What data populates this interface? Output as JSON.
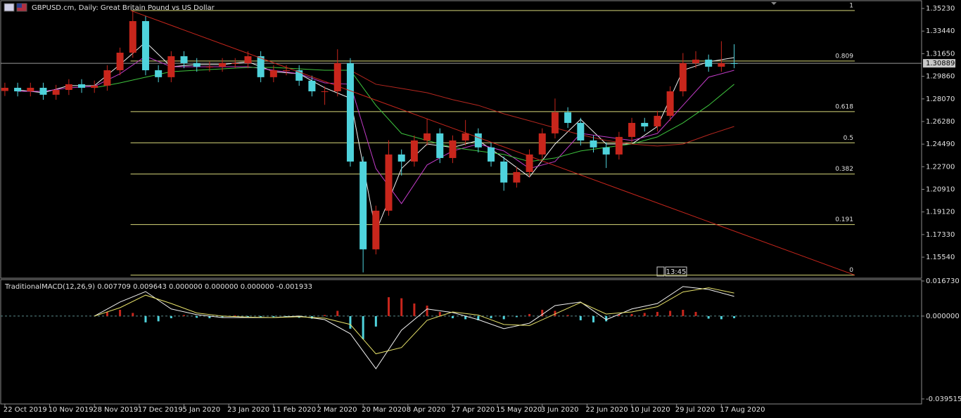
{
  "chart_data": [
    {
      "type": "candlestick",
      "title": "GBPUSD.cm, Daily:  Great Britain Pound vs US Dollar",
      "x": [
        0,
        4,
        8,
        12,
        16,
        20,
        24,
        28,
        32,
        36,
        40,
        44,
        48,
        52,
        56,
        60,
        64,
        68,
        72,
        76,
        80,
        84,
        88,
        92,
        96,
        100,
        104,
        108,
        112,
        116,
        120,
        124,
        128,
        132,
        136,
        140,
        144,
        148,
        152,
        156,
        160,
        164,
        168,
        172,
        176,
        180,
        184,
        188,
        192,
        196,
        200,
        204,
        208,
        212,
        216,
        220,
        224,
        228
      ],
      "open": [
        1.287,
        1.2895,
        1.2867,
        1.2895,
        1.284,
        1.2878,
        1.2923,
        1.2895,
        1.2912,
        1.3034,
        1.3173,
        1.3423,
        1.3034,
        1.2979,
        1.3145,
        1.309,
        1.3062,
        1.3062,
        1.309,
        1.309,
        1.3145,
        1.2979,
        1.3034,
        1.3034,
        1.2951,
        1.2867,
        1.2867,
        1.309,
        1.2311,
        1.1616,
        1.1922,
        1.2367,
        1.2311,
        1.2478,
        1.2534,
        1.2339,
        1.2478,
        1.2534,
        1.2423,
        1.2311,
        1.2145,
        1.2228,
        1.2367,
        1.2534,
        1.2701,
        1.2617,
        1.2478,
        1.2423,
        1.2367,
        1.2506,
        1.2617,
        1.2589,
        1.2673,
        1.2867,
        1.309,
        1.3118,
        1.3062,
        1.309
      ],
      "high": [
        1.2935,
        1.2935,
        1.2935,
        1.2935,
        1.2918,
        1.2963,
        1.2963,
        1.2952,
        1.3074,
        1.3213,
        1.35,
        1.3463,
        1.3074,
        1.3185,
        1.3185,
        1.313,
        1.3102,
        1.313,
        1.313,
        1.3185,
        1.3185,
        1.3074,
        1.3074,
        1.3074,
        1.2991,
        1.2907,
        1.32,
        1.313,
        1.2351,
        1.1962,
        1.248,
        1.2407,
        1.2518,
        1.265,
        1.2574,
        1.2518,
        1.264,
        1.2574,
        1.2463,
        1.2351,
        1.2268,
        1.2407,
        1.2574,
        1.281,
        1.2741,
        1.2657,
        1.2518,
        1.2463,
        1.2546,
        1.2657,
        1.2657,
        1.2713,
        1.2907,
        1.317,
        1.3185,
        1.3158,
        1.3264,
        1.324
      ],
      "low": [
        1.283,
        1.2827,
        1.2827,
        1.28,
        1.28,
        1.2838,
        1.2855,
        1.2855,
        1.2872,
        1.2994,
        1.3133,
        1.2994,
        1.2939,
        1.2939,
        1.305,
        1.3022,
        1.3022,
        1.3022,
        1.305,
        1.305,
        1.2939,
        1.2939,
        1.2994,
        1.2911,
        1.2827,
        1.276,
        1.2827,
        1.2271,
        1.1433,
        1.1576,
        1.1882,
        1.22,
        1.2271,
        1.2438,
        1.2299,
        1.2299,
        1.2438,
        1.2383,
        1.2271,
        1.208,
        1.2105,
        1.2188,
        1.2327,
        1.2494,
        1.2577,
        1.2438,
        1.2383,
        1.226,
        1.2327,
        1.2466,
        1.2549,
        1.2549,
        1.2633,
        1.2827,
        1.305,
        1.3022,
        1.3022,
        1.305
      ],
      "close": [
        1.2895,
        1.2867,
        1.2895,
        1.284,
        1.2878,
        1.2923,
        1.2895,
        1.2912,
        1.3034,
        1.3173,
        1.3423,
        1.3034,
        1.2979,
        1.3145,
        1.309,
        1.3062,
        1.3062,
        1.309,
        1.309,
        1.3145,
        1.2979,
        1.3034,
        1.3034,
        1.2951,
        1.2867,
        1.2867,
        1.309,
        1.2311,
        1.1616,
        1.1922,
        1.2367,
        1.2311,
        1.2478,
        1.2534,
        1.2339,
        1.2478,
        1.2534,
        1.2423,
        1.2311,
        1.2145,
        1.2228,
        1.2367,
        1.2534,
        1.2701,
        1.2617,
        1.2478,
        1.2423,
        1.2367,
        1.2506,
        1.2617,
        1.2589,
        1.2673,
        1.2867,
        1.309,
        1.3118,
        1.3062,
        1.309,
        1.3089
      ],
      "up_color": "#c8261c",
      "down_color": "#4fd3dc",
      "line_x": [
        4,
        12,
        20,
        28,
        36,
        44,
        52,
        60,
        68,
        76,
        84,
        92,
        100,
        108,
        116,
        124,
        132,
        140,
        148,
        156,
        164,
        172,
        180,
        188,
        196,
        204,
        212,
        220,
        228
      ],
      "lines": [
        {
          "color": "#f2f2f2",
          "values": [
            1.2878,
            1.2856,
            1.2912,
            1.2912,
            1.3079,
            1.3257,
            1.3062,
            1.3079,
            1.3079,
            1.3101,
            1.3023,
            1.3006,
            1.2895,
            1.2812,
            1.1755,
            1.2256,
            1.245,
            1.2423,
            1.2478,
            1.2339,
            1.2189,
            1.245,
            1.2645,
            1.245,
            1.245,
            1.2589,
            1.3034,
            1.3101,
            1.3134
          ]
        },
        {
          "color": "#c23cc8",
          "values": [
            1.2867,
            1.2867,
            1.2895,
            1.2906,
            1.3006,
            1.3145,
            1.3062,
            1.3062,
            1.3062,
            1.3062,
            1.3034,
            1.3006,
            1.2934,
            1.2923,
            1.2256,
            1.1978,
            1.2284,
            1.2395,
            1.245,
            1.2395,
            1.2256,
            1.2311,
            1.2534,
            1.2506,
            1.2478,
            1.2534,
            1.2756,
            1.2979,
            1.3034
          ]
        },
        {
          "color": "#3ec43e",
          "values": [
            null,
            null,
            null,
            1.2895,
            1.2934,
            1.2979,
            1.3023,
            1.3034,
            1.3045,
            1.3056,
            1.3056,
            1.3045,
            1.3034,
            1.3034,
            1.2756,
            1.2534,
            1.2478,
            1.2423,
            1.2395,
            1.2367,
            1.2311,
            1.2339,
            1.2395,
            1.2423,
            1.245,
            1.2506,
            1.2617,
            1.2756,
            1.2923
          ]
        },
        {
          "color": "#b5271f",
          "values": [
            null,
            null,
            null,
            null,
            null,
            null,
            null,
            null,
            null,
            null,
            null,
            null,
            null,
            1.3034,
            1.2923,
            1.289,
            1.2856,
            1.2801,
            1.2756,
            1.2689,
            1.2634,
            1.2578,
            1.2523,
            1.2478,
            1.245,
            1.2434,
            1.245,
            1.2523,
            1.2589
          ]
        }
      ],
      "fibonacci": {
        "color": "#d8d87a",
        "high": 1.3507,
        "low": 1.1412,
        "levels": [
          1,
          0.809,
          0.618,
          0.5,
          0.382,
          0.191,
          0
        ],
        "x": [
          39.3,
          265.7
        ]
      },
      "trendline": {
        "color": "#c8261c",
        "x": [
          39.3,
          265.7
        ],
        "y": [
          1.3507,
          1.1412
        ]
      },
      "last_price": 1.30889,
      "countdown": "13:45",
      "xlim": [
        -1.3,
        286.6
      ],
      "ylim": [
        1.1393,
        1.3579
      ],
      "yticks": [
        {
          "value": 1.3523,
          "label": "1.35230"
        },
        {
          "value": 1.3344,
          "label": "1.33440"
        },
        {
          "value": 1.3165,
          "label": "1.31650"
        },
        {
          "value": 1.2986,
          "label": "1.29860"
        },
        {
          "value": 1.2807,
          "label": "1.28070"
        },
        {
          "value": 1.2628,
          "label": "1.26280"
        },
        {
          "value": 1.2449,
          "label": "1.24490"
        },
        {
          "value": 1.227,
          "label": "1.22700"
        },
        {
          "value": 1.2091,
          "label": "1.20910"
        },
        {
          "value": 1.1912,
          "label": "1.19120"
        },
        {
          "value": 1.1733,
          "label": "1.17330"
        },
        {
          "value": 1.1554,
          "label": "1.15540"
        }
      ],
      "xticks": [
        {
          "value": 0,
          "label": "22 Oct 2019"
        },
        {
          "value": 14,
          "label": "10 Nov 2019"
        },
        {
          "value": 28,
          "label": "28 Nov 2019"
        },
        {
          "value": 42,
          "label": "17 Dec 2019"
        },
        {
          "value": 56,
          "label": "5 Jan 2020"
        },
        {
          "value": 70,
          "label": "23 Jan 2020"
        },
        {
          "value": 84,
          "label": "11 Feb 2020"
        },
        {
          "value": 98,
          "label": "2 Mar 2020"
        },
        {
          "value": 112,
          "label": "20 Mar 2020"
        },
        {
          "value": 126,
          "label": "8 Apr 2020"
        },
        {
          "value": 140,
          "label": "27 Apr 2020"
        },
        {
          "value": 154,
          "label": "15 May 2020"
        },
        {
          "value": 168,
          "label": "3 Jun 2020"
        },
        {
          "value": 182,
          "label": "22 Jun 2020"
        },
        {
          "value": 196,
          "label": "10 Jul 2020"
        },
        {
          "value": 210,
          "label": "29 Jul 2020"
        },
        {
          "value": 224,
          "label": "17 Aug 2020"
        }
      ]
    },
    {
      "type": "macd",
      "title": "TraditionalMACD(12,26,9) 0.007709 0.009643 0.000000 0.000000 0.000000 -0.001933",
      "histogram": {
        "up_color": "#c8261c",
        "down_color": "#4fd3dc",
        "values": [
          null,
          null,
          null,
          null,
          null,
          null,
          null,
          null,
          0.002,
          0.003,
          0.0015,
          -0.003,
          -0.0025,
          -0.001,
          0.0005,
          -0.0008,
          -0.001,
          -0.0005,
          0.0003,
          -0.0005,
          -0.0008,
          -0.0005,
          -0.0005,
          -0.0008,
          -0.0012,
          0.0005,
          0.0025,
          -0.006,
          -0.011,
          -0.005,
          0.009,
          0.0085,
          0.006,
          0.005,
          0.002,
          -0.001,
          -0.0015,
          -0.002,
          -0.001,
          -0.0015,
          -0.0005,
          0.001,
          0.003,
          0.0025,
          0.0005,
          -0.002,
          -0.003,
          -0.0025,
          0.0008,
          0.001,
          0.0015,
          0.002,
          0.0025,
          0.003,
          0.002,
          -0.0012,
          -0.0015,
          -0.001
        ]
      },
      "lines": [
        {
          "color": "#f2f2f2",
          "values": [
            null,
            null,
            null,
            0,
            0.0067,
            0.0117,
            0.0034,
            0.0007,
            -0.0007,
            -0.0007,
            -0.0007,
            0,
            -0.0017,
            -0.0084,
            -0.0251,
            -0.0067,
            0.0034,
            0.0017,
            -0.0017,
            -0.006,
            -0.0034,
            0.005,
            0.0067,
            -0.0017,
            0.0034,
            0.006,
            0.0141,
            0.0127,
            0.0094
          ]
        },
        {
          "color": "#e8e36a",
          "values": [
            null,
            null,
            null,
            0,
            0.004,
            0.01,
            0.006,
            0.0015,
            0,
            -0.0005,
            -0.0007,
            -0.0003,
            -0.001,
            -0.004,
            -0.018,
            -0.015,
            -0.002,
            0.002,
            0.0005,
            -0.004,
            -0.0045,
            0.001,
            0.0065,
            0.001,
            0.002,
            0.0045,
            0.0115,
            0.0135,
            0.011
          ]
        }
      ],
      "ylim": [
        -0.0419,
        0.0174
      ],
      "yticks": [
        {
          "value": 0.01673,
          "label": "0.016730"
        },
        {
          "value": 0,
          "label": "0.000000"
        },
        {
          "value": -0.039515,
          "label": "-0.039515"
        }
      ],
      "zero_line": true
    }
  ]
}
